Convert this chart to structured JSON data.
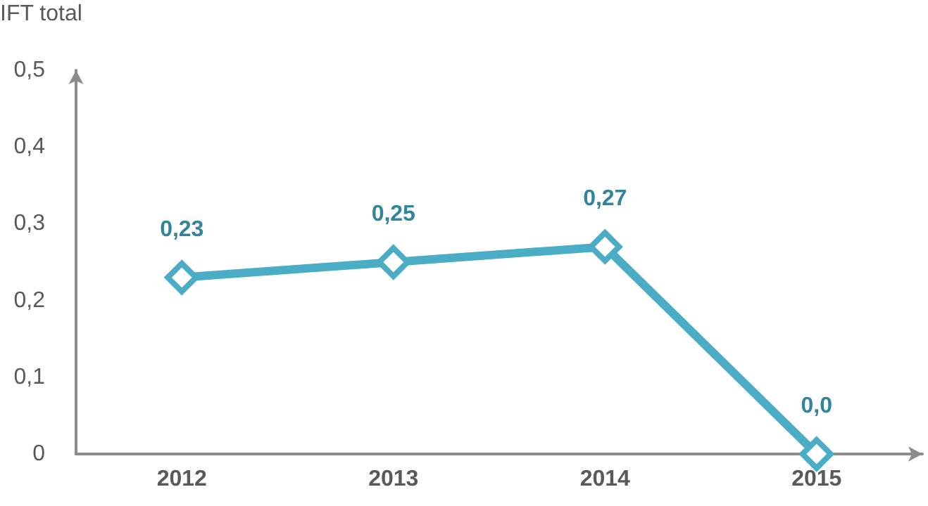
{
  "chart_data": {
    "type": "line",
    "ylabel": "IFT total",
    "categories": [
      "2012",
      "2013",
      "2014",
      "2015"
    ],
    "series": [
      {
        "color": "#4bacc6",
        "values": [
          0.23,
          0.25,
          0.27,
          0.0
        ],
        "value_labels": [
          "0,23",
          "0,25",
          "0,27",
          "0,0"
        ]
      }
    ],
    "ylim": [
      0,
      0.5
    ],
    "yticks": [
      0,
      {
        "value": 0.1,
        "label": "0,1"
      },
      {
        "value": 0.2,
        "label": "0,2"
      },
      {
        "value": 0.3,
        "label": "0,3"
      },
      {
        "value": 0.4,
        "label": "0,4"
      },
      {
        "value": 0.5,
        "label": "0,5"
      }
    ],
    "grid": false,
    "marker": "diamond",
    "line_style": "solid"
  }
}
